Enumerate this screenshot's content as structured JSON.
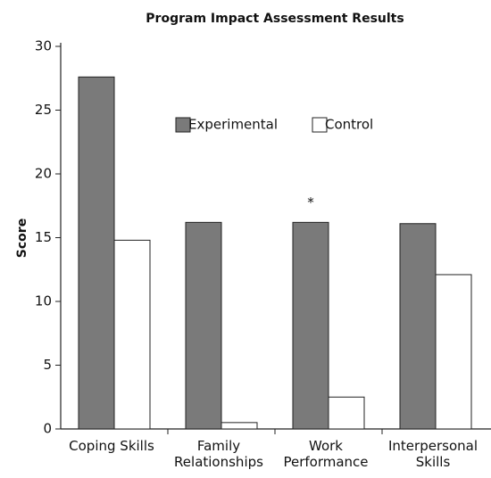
{
  "chart_data": {
    "type": "bar",
    "title": "Program Impact Assessment Results",
    "y_label": "Score",
    "categories": [
      "Coping Skills",
      "Family Relationships",
      "Work Performance",
      "Interpersonal Skills"
    ],
    "series": [
      {
        "name": "Experimental",
        "color": "#7a7a7a",
        "values": [
          27.6,
          16.2,
          16.2,
          16.1
        ]
      },
      {
        "name": "Control",
        "color": "#ffffff",
        "values": [
          14.8,
          0.5,
          2.5,
          12.1
        ]
      }
    ],
    "annotations": [
      {
        "text": "*"
      }
    ],
    "ylim": [
      0,
      30
    ],
    "yticks": [
      0,
      5,
      10,
      15,
      20,
      25,
      30
    ],
    "grid": false,
    "legend": "top"
  }
}
